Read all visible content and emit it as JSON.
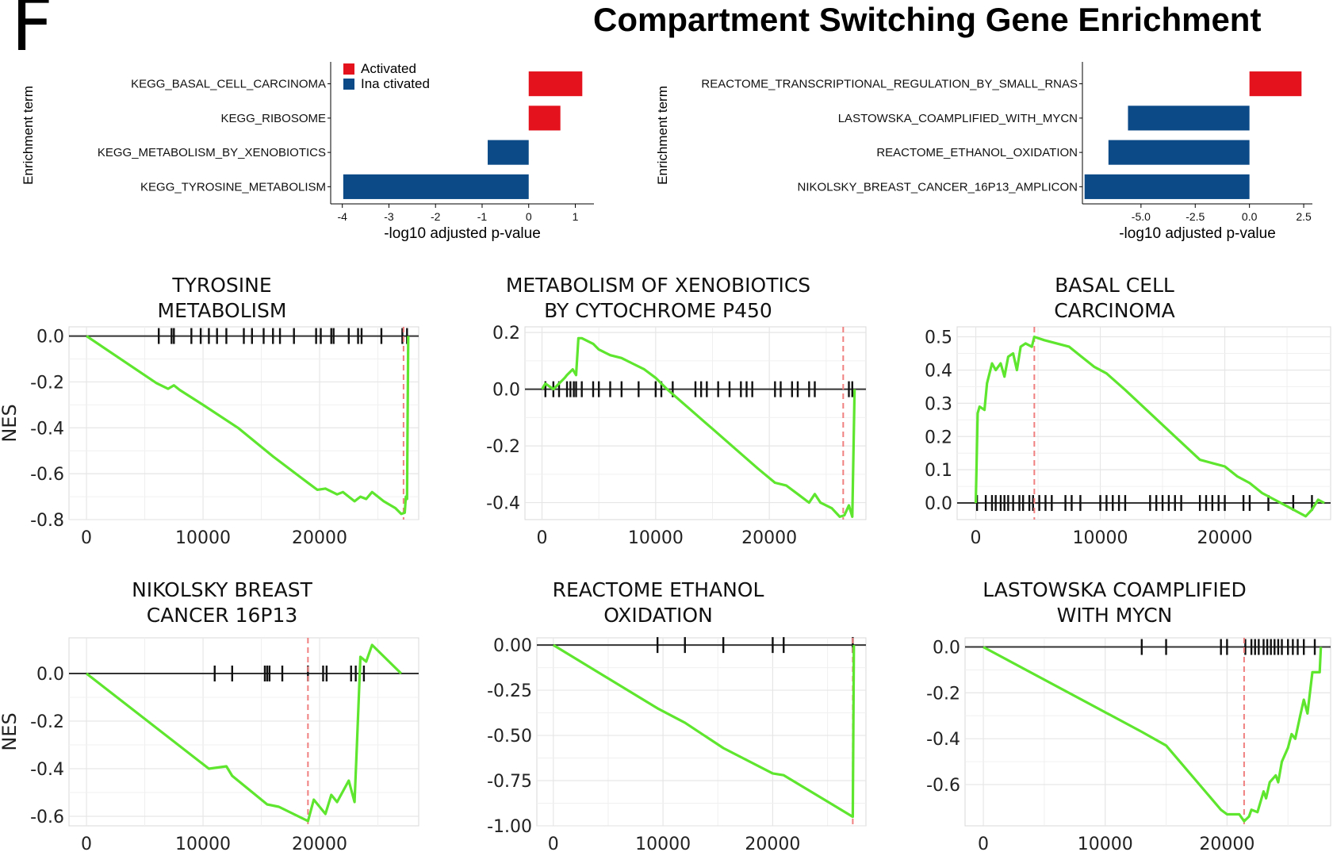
{
  "header": {
    "panel_letter": "F",
    "title": "Compartment Switching Gene Enrichment"
  },
  "colors": {
    "activated": "#e3121c",
    "inactivated": "#0b4a87",
    "running_score": "#5ee52e",
    "leading_edge": "#f08080"
  },
  "chart_data": [
    {
      "id": "bar_left",
      "type": "bar",
      "orientation": "horizontal",
      "categories": [
        "KEGG_BASAL_CELL_CARCINOMA",
        "KEGG_RIBOSOME",
        "KEGG_METABOLISM_BY_XENOBIOTICS",
        "KEGG_TYROSINE_METABOLISM"
      ],
      "values": [
        1.15,
        0.68,
        -0.88,
        -3.98
      ],
      "groups": [
        "Activated",
        "Activated",
        "Inactivated",
        "Inactivated"
      ],
      "xlabel": "-log10 adjusted p-value",
      "ylabel": "Enrichment term",
      "xlim": [
        -4.25,
        1.4
      ],
      "xticks": [
        -4,
        -3,
        -2,
        -1,
        0,
        1
      ],
      "xtick_labels": [
        "-4",
        "-3",
        "-2",
        "-1",
        "0",
        "1"
      ],
      "legend": [
        {
          "label": "Activated",
          "color": "#e3121c"
        },
        {
          "label": "Ina ctivated",
          "color": "#0b4a87"
        }
      ],
      "legend_position": "top-left",
      "grid": false
    },
    {
      "id": "bar_right",
      "type": "bar",
      "orientation": "horizontal",
      "categories": [
        "REACTOME_TRANSCRIPTIONAL_REGULATION_BY_SMALL_RNAS",
        "LASTOWSKA_COAMPLIFIED_WITH_MYCN",
        "REACTOME_ETHANOL_OXIDATION",
        "NIKOLSKY_BREAST_CANCER_16P13_AMPLICON"
      ],
      "values": [
        2.4,
        -5.6,
        -6.5,
        -7.6
      ],
      "groups": [
        "Activated",
        "Inactivated",
        "Inactivated",
        "Inactivated"
      ],
      "xlabel": "-log10 adjusted p-value",
      "ylabel": "Enrichment term",
      "xlim": [
        -7.7,
        2.9
      ],
      "xticks": [
        -5,
        -2.5,
        0,
        2.5
      ],
      "xtick_labels": [
        "-5.0",
        "-2.5",
        "0.0",
        "2.5"
      ],
      "grid": false
    },
    {
      "id": "gsea_tyrosine",
      "type": "line",
      "title_lines": [
        "TYROSINE",
        "METABOLISM"
      ],
      "ylabel": "NES",
      "xlim": [
        -1500,
        28500
      ],
      "ylim": [
        -0.8,
        0.04
      ],
      "xticks": [
        0,
        10000,
        20000
      ],
      "xtick_labels": [
        "0",
        "10000",
        "20000"
      ],
      "yticks": [
        0,
        -0.2,
        -0.4,
        -0.6,
        -0.8
      ],
      "ytick_labels": [
        "0.0",
        "-0.2",
        "-0.4",
        "-0.6",
        "-0.8"
      ],
      "series": [
        {
          "x": [
            0,
            6000,
            7000,
            7500,
            8000,
            10000,
            13000,
            16000,
            19000,
            19800,
            20500,
            21500,
            22000,
            23000,
            23500,
            24000,
            24500,
            25500,
            26500,
            27000,
            27300,
            27400,
            27500,
            27600
          ],
          "y": [
            0,
            -0.205,
            -0.23,
            -0.215,
            -0.235,
            -0.3,
            -0.4,
            -0.525,
            -0.64,
            -0.67,
            -0.665,
            -0.69,
            -0.68,
            -0.72,
            -0.7,
            -0.71,
            -0.68,
            -0.72,
            -0.75,
            -0.775,
            -0.77,
            -0.7,
            -0.71,
            0.0
          ]
        }
      ],
      "hits": [
        6200,
        7300,
        7500,
        9000,
        9800,
        10500,
        11200,
        12000,
        13500,
        14200,
        15200,
        16000,
        16600,
        17800,
        19700,
        20100,
        21000,
        21200,
        22500,
        23300,
        23600,
        25300,
        27100,
        27500
      ],
      "leading_edge_x": 27200,
      "grid": true
    },
    {
      "id": "gsea_xenobiotics",
      "type": "line",
      "title_lines": [
        "METABOLISM OF XENOBIOTICS",
        "BY CYTOCHROME P450"
      ],
      "ylabel": "",
      "xlim": [
        -1500,
        28500
      ],
      "ylim": [
        -0.46,
        0.22
      ],
      "xticks": [
        0,
        10000,
        20000
      ],
      "xtick_labels": [
        "0",
        "10000",
        "20000"
      ],
      "yticks": [
        0.2,
        0,
        -0.2,
        -0.4
      ],
      "ytick_labels": [
        "0.2",
        "0.0",
        "-0.2",
        "-0.4"
      ],
      "series": [
        {
          "x": [
            0,
            300,
            1000,
            1500,
            2000,
            2200,
            2700,
            3000,
            3200,
            3500,
            4500,
            5000,
            6000,
            7000,
            8000,
            9000,
            10000,
            11000,
            13000,
            15000,
            17000,
            19000,
            20500,
            21500,
            22500,
            23500,
            24000,
            24500,
            25500,
            26200,
            26600,
            27000,
            27300,
            27500
          ],
          "y": [
            0,
            0.02,
            0,
            0.02,
            0.04,
            0.05,
            0.07,
            0.05,
            0.18,
            0.18,
            0.16,
            0.14,
            0.12,
            0.11,
            0.09,
            0.07,
            0.04,
            0.0,
            -0.07,
            -0.14,
            -0.21,
            -0.28,
            -0.33,
            -0.34,
            -0.37,
            -0.4,
            -0.37,
            -0.4,
            -0.42,
            -0.45,
            -0.445,
            -0.41,
            -0.45,
            0.0
          ]
        }
      ],
      "hits": [
        300,
        1000,
        1500,
        2200,
        2500,
        2800,
        3000,
        3500,
        4500,
        5000,
        6000,
        7000,
        8500,
        10000,
        10500,
        11500,
        13500,
        14000,
        14500,
        15500,
        16500,
        17500,
        18000,
        18500,
        20500,
        21000,
        22000,
        22500,
        23500,
        24000,
        27000,
        27300
      ],
      "leading_edge_x": 26500,
      "grid": true
    },
    {
      "id": "gsea_basal",
      "type": "line",
      "title_lines": [
        "BASAL CELL",
        "CARCINOMA"
      ],
      "ylabel": "",
      "xlim": [
        -1500,
        28500
      ],
      "ylim": [
        -0.05,
        0.53
      ],
      "xticks": [
        0,
        10000,
        20000
      ],
      "xtick_labels": [
        "0",
        "10000",
        "20000"
      ],
      "yticks": [
        0.5,
        0.4,
        0.3,
        0.2,
        0.1,
        0
      ],
      "ytick_labels": [
        "0.5",
        "0.4",
        "0.3",
        "0.2",
        "0.1",
        "0.0"
      ],
      "series": [
        {
          "x": [
            0,
            150,
            300,
            700,
            900,
            1300,
            1600,
            2000,
            2300,
            2600,
            3000,
            3300,
            3600,
            4000,
            4500,
            4700,
            5500,
            6500,
            7500,
            8500,
            9500,
            10500,
            12000,
            14000,
            16000,
            18000,
            19000,
            20000,
            21000,
            22000,
            23000,
            24000,
            25000,
            26000,
            26500,
            27000,
            27500,
            28000
          ],
          "y": [
            0,
            0.27,
            0.29,
            0.28,
            0.36,
            0.42,
            0.4,
            0.42,
            0.38,
            0.44,
            0.45,
            0.4,
            0.47,
            0.48,
            0.47,
            0.5,
            0.49,
            0.48,
            0.47,
            0.44,
            0.41,
            0.39,
            0.34,
            0.27,
            0.2,
            0.13,
            0.12,
            0.11,
            0.08,
            0.06,
            0.03,
            0.01,
            -0.01,
            -0.03,
            -0.04,
            -0.02,
            0.01,
            0.0
          ]
        }
      ],
      "hits": [
        100,
        800,
        1300,
        1600,
        2000,
        2300,
        2600,
        3000,
        3500,
        3800,
        4300,
        4600,
        5100,
        5600,
        6100,
        7200,
        7700,
        8400,
        10000,
        10500,
        11000,
        11500,
        12000,
        14000,
        14500,
        15000,
        15500,
        16000,
        16500,
        18000,
        18500,
        19000,
        19500,
        20000,
        21500,
        22000,
        23500,
        25500,
        27000
      ],
      "leading_edge_x": 4700,
      "grid": true
    },
    {
      "id": "gsea_nikolsky",
      "type": "line",
      "title_lines": [
        "NIKOLSKY BREAST",
        "CANCER 16P13"
      ],
      "ylabel": "NES",
      "xlim": [
        -1500,
        28500
      ],
      "ylim": [
        -0.64,
        0.15
      ],
      "xticks": [
        0,
        10000,
        20000
      ],
      "xtick_labels": [
        "0",
        "10000",
        "20000"
      ],
      "yticks": [
        0,
        -0.2,
        -0.4,
        -0.6
      ],
      "ytick_labels": [
        "0.0",
        "-0.2",
        "-0.4",
        "-0.6"
      ],
      "series": [
        {
          "x": [
            0,
            10500,
            12000,
            12500,
            15500,
            16500,
            19000,
            19500,
            20500,
            21000,
            21500,
            22500,
            23000,
            23200,
            23500,
            24000,
            24500,
            27000
          ],
          "y": [
            0,
            -0.4,
            -0.39,
            -0.43,
            -0.55,
            -0.56,
            -0.62,
            -0.53,
            -0.59,
            -0.51,
            -0.54,
            -0.45,
            -0.54,
            -0.3,
            0.07,
            0.05,
            0.12,
            0.0
          ]
        }
      ],
      "hits": [
        11000,
        12500,
        15300,
        15500,
        15700,
        16800,
        19000,
        20300,
        20600,
        22700,
        23100,
        23800
      ],
      "leading_edge_x": 19000,
      "grid": true
    },
    {
      "id": "gsea_ethanol",
      "type": "line",
      "title_lines": [
        "REACTOME ETHANOL",
        "OXIDATION"
      ],
      "ylabel": "",
      "xlim": [
        -1500,
        28500
      ],
      "ylim": [
        -1.0,
        0.04
      ],
      "xticks": [
        0,
        10000,
        20000
      ],
      "xtick_labels": [
        "0",
        "10000",
        "20000"
      ],
      "yticks": [
        0,
        -0.25,
        -0.5,
        -0.75,
        -1.0
      ],
      "ytick_labels": [
        "0.00",
        "-0.25",
        "-0.50",
        "-0.75",
        "-1.00"
      ],
      "series": [
        {
          "x": [
            0,
            9500,
            12000,
            15500,
            20000,
            21000,
            27300,
            27400
          ],
          "y": [
            0,
            -0.35,
            -0.43,
            -0.57,
            -0.71,
            -0.72,
            -0.95,
            0.0
          ]
        }
      ],
      "hits": [
        9500,
        12000,
        15500,
        20000,
        21000,
        27300
      ],
      "leading_edge_x": 27300,
      "grid": true
    },
    {
      "id": "gsea_lastowska",
      "type": "line",
      "title_lines": [
        "LASTOWSKA COAMPLIFIED",
        "WITH MYCN"
      ],
      "ylabel": "",
      "xlim": [
        -1500,
        28500
      ],
      "ylim": [
        -0.78,
        0.04
      ],
      "xticks": [
        0,
        10000,
        20000
      ],
      "xtick_labels": [
        "0",
        "10000",
        "20000"
      ],
      "yticks": [
        0,
        -0.2,
        -0.4,
        -0.6
      ],
      "ytick_labels": [
        "0.0",
        "-0.2",
        "-0.4",
        "-0.6"
      ],
      "series": [
        {
          "x": [
            0,
            13000,
            15000,
            19500,
            20000,
            21000,
            21400,
            21800,
            22000,
            22500,
            23000,
            23200,
            23500,
            24000,
            24200,
            24500,
            25000,
            25300,
            25600,
            26000,
            26300,
            26600,
            27000,
            27600,
            27700
          ],
          "y": [
            0,
            -0.37,
            -0.43,
            -0.71,
            -0.73,
            -0.73,
            -0.76,
            -0.74,
            -0.71,
            -0.72,
            -0.63,
            -0.66,
            -0.59,
            -0.56,
            -0.59,
            -0.5,
            -0.44,
            -0.38,
            -0.4,
            -0.3,
            -0.23,
            -0.29,
            -0.11,
            -0.11,
            0.0
          ]
        }
      ],
      "hits": [
        13000,
        15000,
        19500,
        20000,
        21500,
        22000,
        22300,
        22600,
        23000,
        23300,
        23600,
        23900,
        24200,
        24500,
        25000,
        25400,
        25800,
        26300,
        27200
      ],
      "leading_edge_x": 21400,
      "grid": true
    }
  ]
}
